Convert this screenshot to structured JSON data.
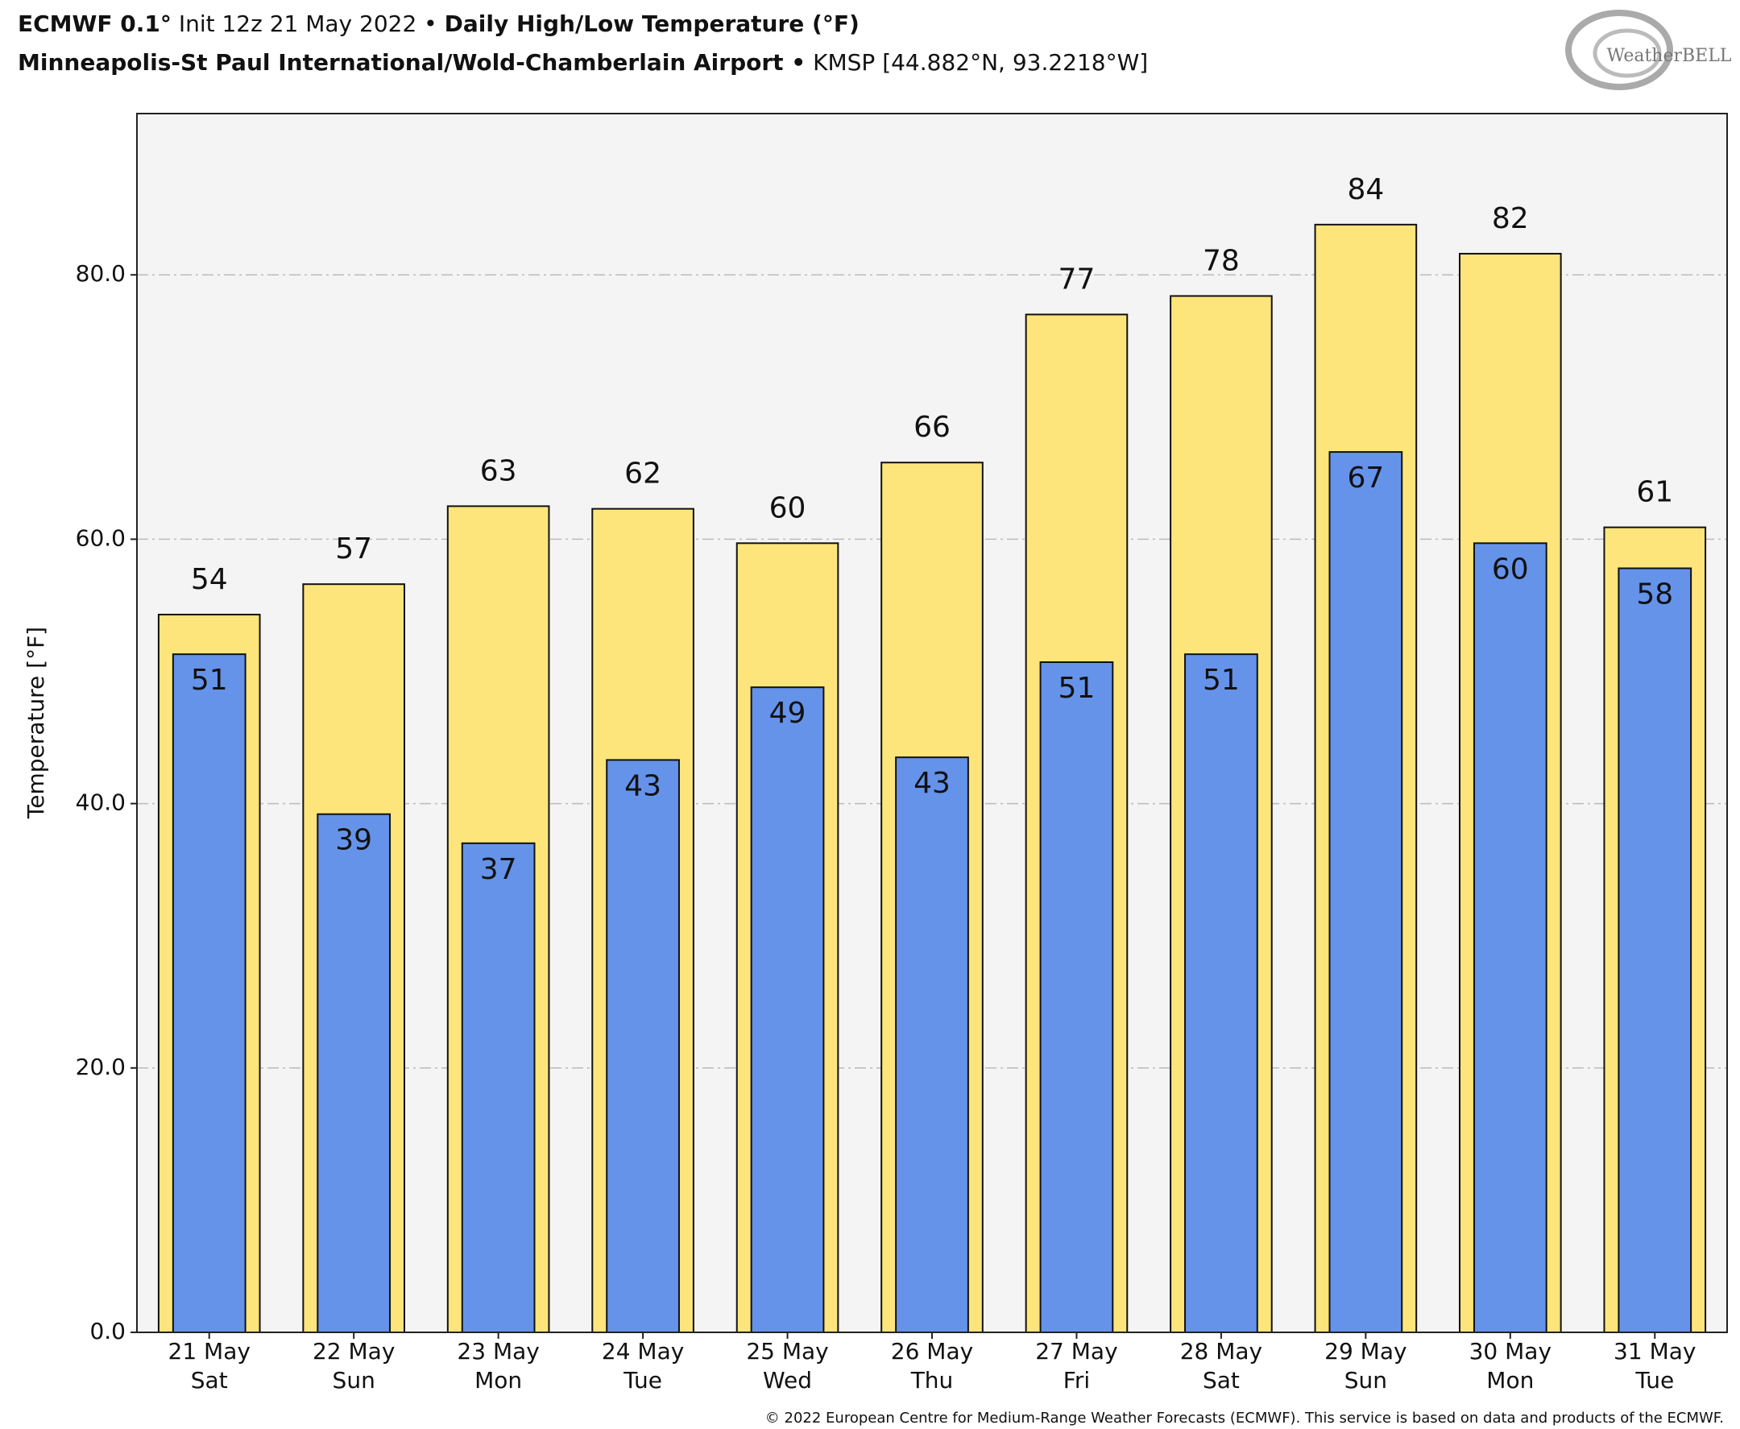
{
  "chart_data": {
    "type": "bar",
    "title": {
      "model": "ECMWF 0.1°",
      "init": "Init 12z 21 May 2022 •",
      "product": "Daily High/Low Temperature (°F)"
    },
    "subtitle": {
      "station": "Minneapolis-St Paul International/Wold-Chamberlain Airport •",
      "location": "KMSP [44.882°N, 93.2218°W]"
    },
    "logo": "WeatherBELL",
    "ylabel": "Temperature [°F]",
    "footer": "© 2022 European Centre for Medium-Range Weather Forecasts (ECMWF). This service is based on data and products of the ECMWF.",
    "categories": [
      [
        "21 May",
        "Sat"
      ],
      [
        "22 May",
        "Sun"
      ],
      [
        "23 May",
        "Mon"
      ],
      [
        "24 May",
        "Tue"
      ],
      [
        "25 May",
        "Wed"
      ],
      [
        "26 May",
        "Thu"
      ],
      [
        "27 May",
        "Fri"
      ],
      [
        "28 May",
        "Sat"
      ],
      [
        "29 May",
        "Sun"
      ],
      [
        "30 May",
        "Mon"
      ],
      [
        "31 May",
        "Tue"
      ]
    ],
    "series": [
      {
        "name": "High",
        "color": "#fde57c",
        "values": [
          54.3,
          56.6,
          62.5,
          62.3,
          59.7,
          65.8,
          77.0,
          78.4,
          83.8,
          81.6,
          60.9
        ],
        "value_labels": [
          "54",
          "57",
          "63",
          "62",
          "60",
          "66",
          "77",
          "78",
          "84",
          "82",
          "61"
        ]
      },
      {
        "name": "Low",
        "color": "#6593ea",
        "values": [
          51.3,
          39.2,
          37.0,
          43.3,
          48.8,
          43.5,
          50.7,
          51.3,
          66.6,
          59.7,
          57.8
        ],
        "value_labels": [
          "51",
          "39",
          "37",
          "43",
          "49",
          "43",
          "51",
          "51",
          "67",
          "60",
          "58"
        ]
      }
    ],
    "ylim": [
      0,
      92.2
    ],
    "yticks": [
      {
        "value": 0,
        "label": "0.0"
      },
      {
        "value": 20,
        "label": "20.0"
      },
      {
        "value": 40,
        "label": "40.0"
      },
      {
        "value": 60,
        "label": "60.0"
      },
      {
        "value": 80,
        "label": "80.0"
      }
    ],
    "grid": true
  }
}
